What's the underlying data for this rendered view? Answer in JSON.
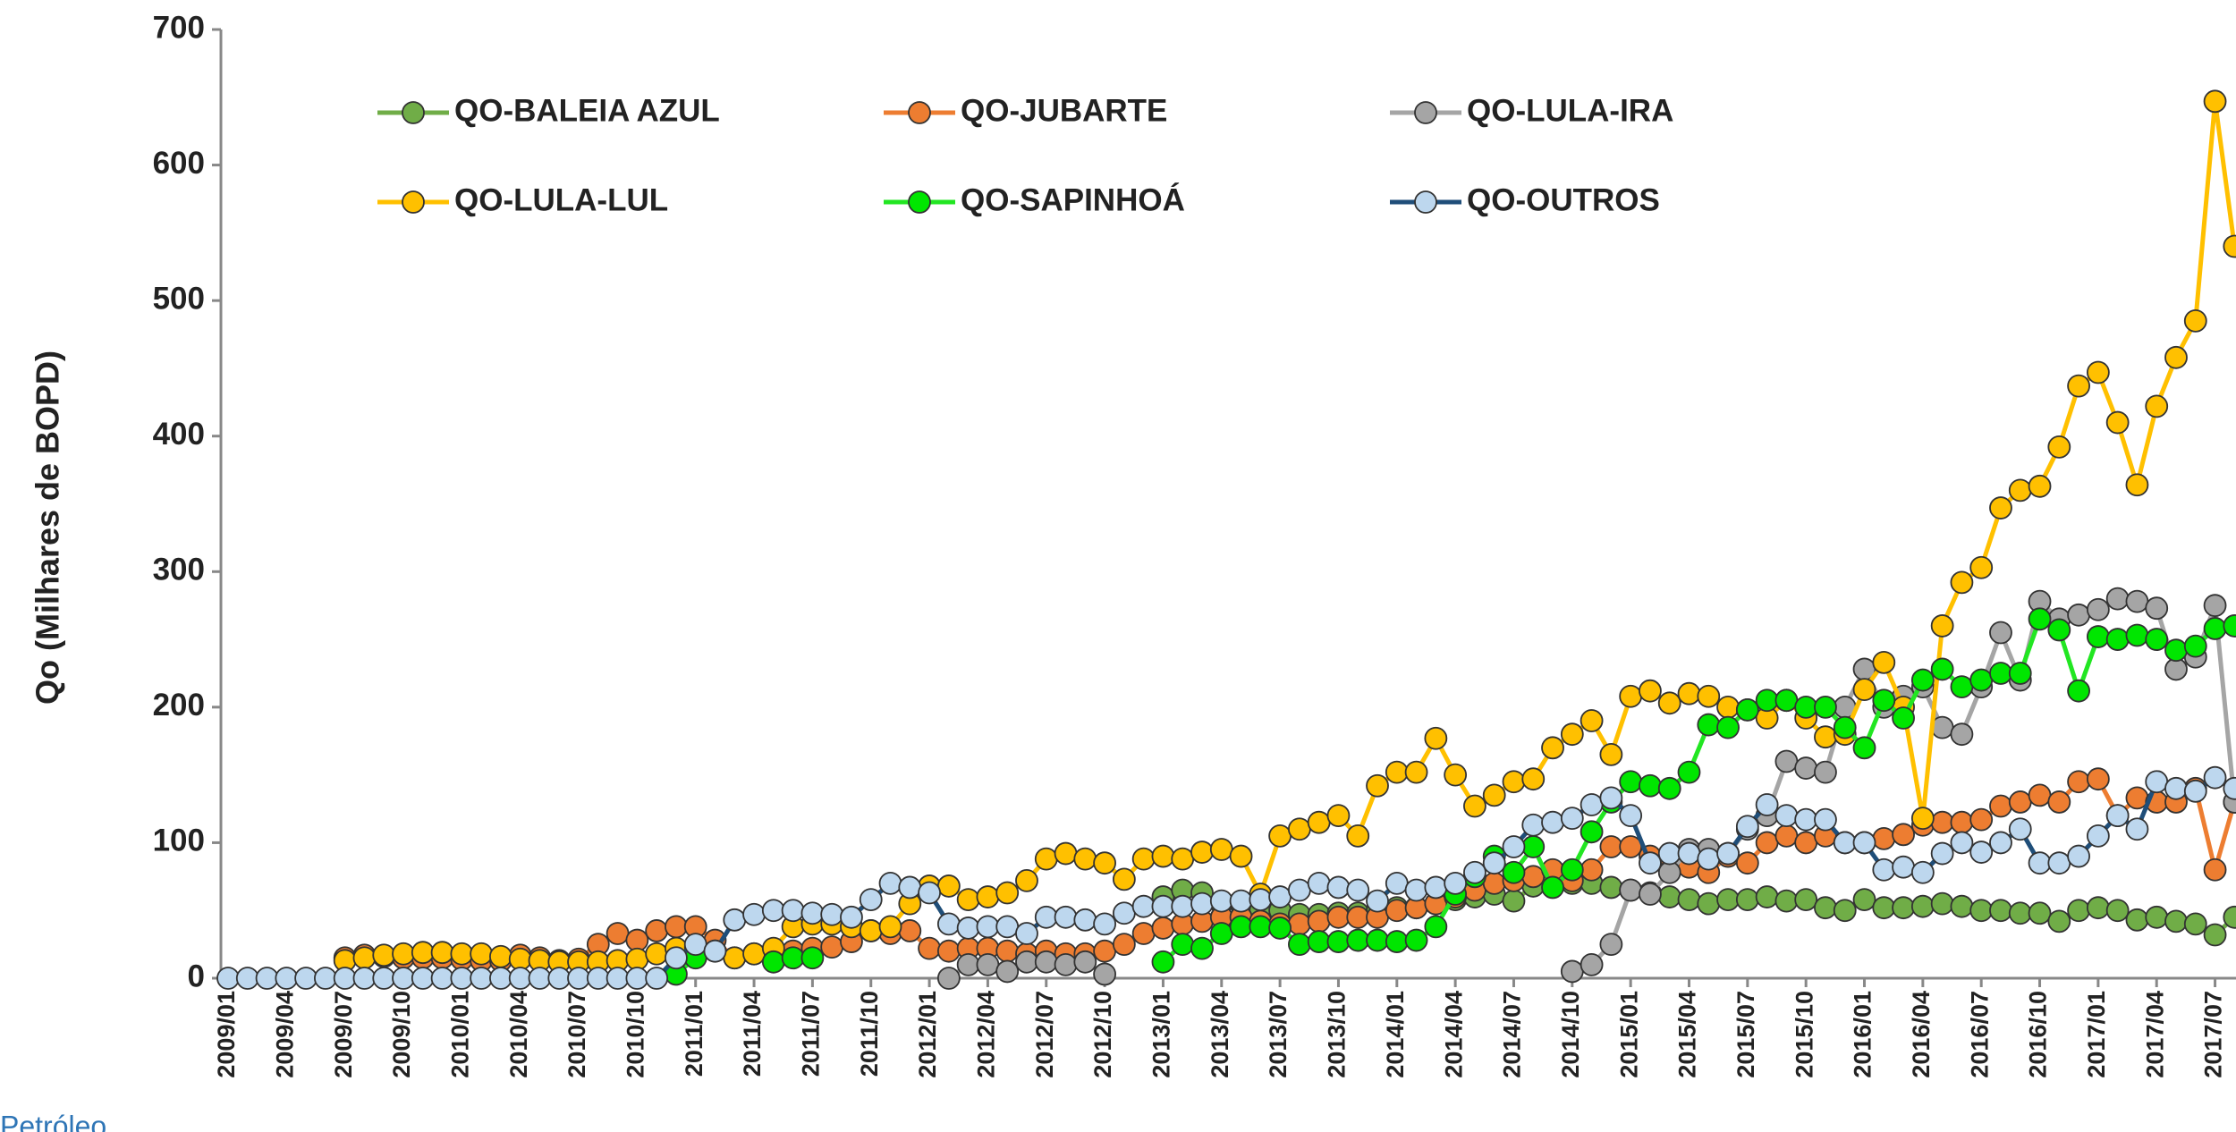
{
  "chart_data": {
    "type": "line",
    "y_label": "Qo (Milhares de BOPD)",
    "footer_text": "Petróleo",
    "ylim": [
      0,
      700
    ],
    "yticks": [
      0,
      100,
      200,
      300,
      400,
      500,
      600,
      700
    ],
    "categories": [
      "2009/01",
      null,
      null,
      "2009/04",
      null,
      null,
      "2009/07",
      null,
      null,
      "2009/10",
      null,
      null,
      "2010/01",
      null,
      null,
      "2010/04",
      null,
      null,
      "2010/07",
      null,
      null,
      "2010/10",
      null,
      null,
      "2011/01",
      null,
      null,
      "2011/04",
      null,
      null,
      "2011/07",
      null,
      null,
      "2011/10",
      null,
      null,
      "2012/01",
      null,
      null,
      "2012/04",
      null,
      null,
      "2012/07",
      null,
      null,
      "2012/10",
      null,
      null,
      "2013/01",
      null,
      null,
      "2013/04",
      null,
      null,
      "2013/07",
      null,
      null,
      "2013/10",
      null,
      null,
      "2014/01",
      null,
      null,
      "2014/04",
      null,
      null,
      "2014/07",
      null,
      null,
      "2014/10",
      null,
      null,
      "2015/01",
      null,
      null,
      "2015/04",
      null,
      null,
      "2015/07",
      null,
      null,
      "2015/10",
      null,
      null,
      "2016/01",
      null,
      null,
      "2016/04",
      null,
      null,
      "2016/07",
      null,
      null,
      "2016/10",
      null,
      null,
      "2017/01",
      null,
      null,
      "2017/04",
      null,
      null,
      "2017/07",
      null
    ],
    "series": [
      {
        "name": "QO-BALEIA AZUL",
        "color": "#70ad47",
        "marker_color": "#70ad47",
        "values": [
          null,
          null,
          null,
          null,
          null,
          null,
          null,
          null,
          null,
          null,
          null,
          null,
          null,
          null,
          null,
          null,
          null,
          null,
          null,
          null,
          null,
          null,
          null,
          null,
          null,
          null,
          null,
          null,
          null,
          null,
          null,
          null,
          null,
          null,
          null,
          null,
          null,
          null,
          null,
          null,
          null,
          null,
          null,
          null,
          null,
          null,
          null,
          null,
          60,
          65,
          63,
          55,
          55,
          50,
          50,
          47,
          47,
          48,
          48,
          50,
          52,
          52,
          55,
          58,
          60,
          62,
          57,
          68,
          72,
          70,
          70,
          67,
          65,
          63,
          60,
          58,
          55,
          58,
          58,
          60,
          57,
          58,
          52,
          50,
          58,
          52,
          52,
          53,
          55,
          53,
          50,
          50,
          48,
          48,
          42,
          50,
          52,
          50,
          43,
          45,
          42,
          40,
          32,
          45
        ]
      },
      {
        "name": "QO-JUBARTE",
        "color": "#ed7d31",
        "marker_color": "#ed7d31",
        "values": [
          null,
          null,
          null,
          null,
          null,
          null,
          15,
          17,
          16,
          15,
          15,
          15,
          14,
          13,
          13,
          17,
          15,
          13,
          14,
          25,
          33,
          28,
          35,
          38,
          38,
          28,
          15,
          18,
          18,
          20,
          22,
          23,
          27,
          35,
          33,
          35,
          22,
          20,
          22,
          22,
          20,
          18,
          20,
          18,
          18,
          20,
          25,
          33,
          37,
          40,
          42,
          45,
          45,
          42,
          40,
          40,
          42,
          45,
          45,
          45,
          50,
          52,
          55,
          60,
          65,
          70,
          72,
          75,
          80,
          72,
          80,
          97,
          97,
          90,
          90,
          82,
          78,
          90,
          85,
          100,
          105,
          100,
          105,
          100,
          100,
          103,
          106,
          113,
          115,
          115,
          117,
          127,
          130,
          135,
          130,
          145,
          147,
          120,
          133,
          130,
          130,
          140,
          80,
          130
        ]
      },
      {
        "name": "QO-LULA-IRA",
        "color": "#a5a5a5",
        "marker_color": "#a5a5a5",
        "values": [
          null,
          null,
          null,
          null,
          null,
          null,
          null,
          null,
          null,
          null,
          null,
          null,
          null,
          null,
          null,
          null,
          null,
          null,
          null,
          null,
          null,
          null,
          null,
          null,
          null,
          null,
          null,
          null,
          null,
          null,
          null,
          null,
          null,
          null,
          null,
          null,
          null,
          0,
          10,
          10,
          5,
          12,
          12,
          10,
          12,
          3,
          null,
          null,
          null,
          null,
          null,
          null,
          null,
          null,
          null,
          null,
          null,
          null,
          null,
          null,
          null,
          null,
          null,
          null,
          null,
          null,
          null,
          null,
          null,
          5,
          10,
          25,
          65,
          62,
          78,
          95,
          95,
          92,
          110,
          120,
          160,
          155,
          152,
          200,
          228,
          200,
          208,
          215,
          185,
          180,
          215,
          255,
          220,
          278,
          265,
          268,
          272,
          280,
          278,
          273,
          228,
          237,
          275,
          130
        ]
      },
      {
        "name": "QO-LULA-LUL",
        "color": "#ffc000",
        "marker_color": "#ffc000",
        "values": [
          null,
          null,
          null,
          null,
          null,
          null,
          13,
          15,
          17,
          18,
          19,
          19,
          18,
          18,
          16,
          14,
          13,
          12,
          12,
          12,
          13,
          14,
          18,
          22,
          23,
          20,
          15,
          18,
          22,
          38,
          40,
          40,
          38,
          35,
          38,
          55,
          68,
          68,
          58,
          60,
          63,
          72,
          88,
          92,
          88,
          85,
          73,
          88,
          90,
          88,
          93,
          95,
          90,
          62,
          105,
          110,
          115,
          120,
          105,
          142,
          152,
          152,
          177,
          150,
          127,
          135,
          145,
          147,
          170,
          180,
          190,
          165,
          208,
          212,
          203,
          210,
          208,
          200,
          198,
          192,
          205,
          192,
          178,
          180,
          213,
          233,
          200,
          118,
          260,
          292,
          303,
          347,
          360,
          363,
          392,
          437,
          447,
          410,
          364,
          422,
          458,
          485,
          647,
          540
        ]
      },
      {
        "name": "QO-SAPINHOÁ",
        "color": "#22e622",
        "marker_color": "#00e600",
        "values": [
          null,
          null,
          null,
          null,
          null,
          null,
          null,
          null,
          null,
          null,
          null,
          null,
          null,
          null,
          null,
          null,
          null,
          null,
          null,
          null,
          null,
          null,
          null,
          3,
          15,
          null,
          null,
          null,
          12,
          15,
          15,
          null,
          null,
          null,
          null,
          null,
          null,
          null,
          null,
          null,
          null,
          null,
          null,
          null,
          null,
          null,
          null,
          null,
          12,
          25,
          22,
          33,
          38,
          38,
          37,
          25,
          27,
          27,
          28,
          28,
          27,
          28,
          38,
          62,
          75,
          90,
          78,
          97,
          67,
          80,
          108,
          130,
          145,
          142,
          140,
          152,
          187,
          185,
          198,
          205,
          205,
          200,
          200,
          185,
          170,
          205,
          192,
          220,
          228,
          215,
          220,
          225,
          225,
          265,
          257,
          212,
          252,
          250,
          253,
          250,
          242,
          245,
          258,
          260
        ]
      },
      {
        "name": "QO-OUTROS",
        "color": "#1f4e79",
        "marker_color": "#bdd7ee",
        "values": [
          0,
          0,
          0,
          0,
          0,
          0,
          0,
          0,
          0,
          0,
          0,
          0,
          0,
          0,
          0,
          0,
          0,
          0,
          0,
          0,
          0,
          0,
          0,
          15,
          25,
          20,
          43,
          47,
          50,
          50,
          48,
          47,
          45,
          58,
          70,
          67,
          63,
          40,
          37,
          38,
          38,
          33,
          45,
          45,
          43,
          40,
          48,
          53,
          53,
          53,
          55,
          57,
          57,
          58,
          60,
          65,
          70,
          67,
          65,
          57,
          70,
          65,
          67,
          70,
          78,
          85,
          97,
          113,
          115,
          118,
          128,
          133,
          120,
          85,
          92,
          92,
          88,
          92,
          112,
          128,
          120,
          117,
          117,
          100,
          100,
          80,
          82,
          78,
          92,
          100,
          93,
          100,
          110,
          85,
          85,
          90,
          105,
          120,
          110,
          145,
          140,
          138,
          148,
          140
        ]
      }
    ]
  }
}
